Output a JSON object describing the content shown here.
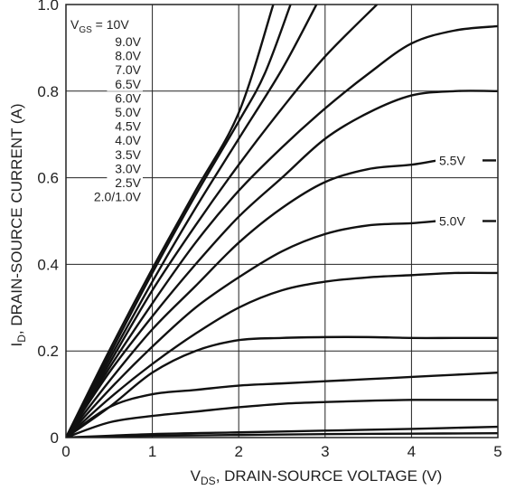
{
  "chart_data": {
    "type": "line",
    "xlabel": {
      "main": "V",
      "sub": "DS",
      "rest": ", DRAIN-SOURCE VOLTAGE (V)"
    },
    "ylabel": {
      "main": "I",
      "sub": "D",
      "rest": ", DRAIN-SOURCE CURRENT (A)"
    },
    "xlim": [
      0,
      5
    ],
    "ylim": [
      0,
      1.0
    ],
    "xticks": [
      "0",
      "1",
      "2",
      "3",
      "4",
      "5"
    ],
    "yticks": [
      "0",
      "0.2",
      "0.4",
      "0.6",
      "0.8",
      "1.0"
    ],
    "grid": true,
    "legend": {
      "header": {
        "main": "V",
        "sub": "GS",
        "rest": " = 10V"
      },
      "entries": [
        "9.0V",
        "8.0V",
        "7.0V",
        "6.5V",
        "6.0V",
        "5.0V",
        "4.5V",
        "4.0V",
        "3.5V",
        "3.0V",
        "2.5V",
        "2.0/1.0V"
      ]
    },
    "annotations": [
      "5.5V",
      "5.0V"
    ],
    "series": [
      {
        "values": [
          [
            0,
            0
          ],
          [
            0.5,
            0.2
          ],
          [
            1,
            0.39
          ],
          [
            1.5,
            0.57
          ],
          [
            2,
            0.75
          ],
          [
            2.4,
            1.0
          ]
        ]
      },
      {
        "values": [
          [
            0,
            0
          ],
          [
            0.5,
            0.19
          ],
          [
            1,
            0.38
          ],
          [
            1.5,
            0.56
          ],
          [
            2,
            0.73
          ],
          [
            2.3,
            0.84
          ],
          [
            2.6,
            1.0
          ]
        ]
      },
      {
        "values": [
          [
            0,
            0
          ],
          [
            0.5,
            0.18
          ],
          [
            1,
            0.36
          ],
          [
            1.5,
            0.53
          ],
          [
            2,
            0.69
          ],
          [
            2.5,
            0.85
          ],
          [
            2.9,
            1.0
          ]
        ]
      },
      {
        "values": [
          [
            0,
            0
          ],
          [
            0.5,
            0.17
          ],
          [
            1,
            0.34
          ],
          [
            1.5,
            0.49
          ],
          [
            2,
            0.63
          ],
          [
            2.5,
            0.76
          ],
          [
            3,
            0.88
          ],
          [
            3.6,
            1.0
          ]
        ]
      },
      {
        "values": [
          [
            0,
            0
          ],
          [
            0.5,
            0.16
          ],
          [
            1,
            0.31
          ],
          [
            1.5,
            0.45
          ],
          [
            2,
            0.57
          ],
          [
            2.5,
            0.67
          ],
          [
            3,
            0.76
          ],
          [
            3.5,
            0.84
          ],
          [
            4,
            0.91
          ],
          [
            4.5,
            0.94
          ],
          [
            5,
            0.95
          ]
        ]
      },
      {
        "values": [
          [
            0,
            0
          ],
          [
            0.5,
            0.15
          ],
          [
            1,
            0.28
          ],
          [
            1.5,
            0.4
          ],
          [
            2,
            0.51
          ],
          [
            2.5,
            0.6
          ],
          [
            3,
            0.69
          ],
          [
            3.5,
            0.75
          ],
          [
            4,
            0.79
          ],
          [
            4.5,
            0.8
          ],
          [
            5,
            0.8
          ]
        ]
      },
      {
        "values": [
          [
            0,
            0
          ],
          [
            0.5,
            0.13
          ],
          [
            1,
            0.25
          ],
          [
            1.5,
            0.35
          ],
          [
            2,
            0.45
          ],
          [
            2.5,
            0.53
          ],
          [
            3,
            0.59
          ],
          [
            3.5,
            0.62
          ],
          [
            4,
            0.63
          ],
          [
            4.3,
            0.64
          ]
        ]
      },
      {
        "values": [
          [
            0,
            0
          ],
          [
            0.5,
            0.11
          ],
          [
            1,
            0.21
          ],
          [
            1.5,
            0.3
          ],
          [
            2,
            0.37
          ],
          [
            2.5,
            0.43
          ],
          [
            3,
            0.47
          ],
          [
            3.5,
            0.49
          ],
          [
            4,
            0.495
          ],
          [
            4.3,
            0.5
          ]
        ]
      },
      {
        "values": [
          [
            0,
            0
          ],
          [
            0.5,
            0.09
          ],
          [
            1,
            0.17
          ],
          [
            1.5,
            0.24
          ],
          [
            2,
            0.3
          ],
          [
            2.5,
            0.34
          ],
          [
            3,
            0.36
          ],
          [
            3.5,
            0.37
          ],
          [
            4,
            0.375
          ],
          [
            4.5,
            0.38
          ],
          [
            5,
            0.38
          ]
        ]
      },
      {
        "values": [
          [
            0,
            0
          ],
          [
            0.5,
            0.07
          ],
          [
            1,
            0.15
          ],
          [
            1.5,
            0.2
          ],
          [
            2,
            0.225
          ],
          [
            2.5,
            0.23
          ],
          [
            3,
            0.232
          ],
          [
            3.5,
            0.232
          ],
          [
            4,
            0.23
          ],
          [
            4.5,
            0.23
          ],
          [
            5,
            0.23
          ]
        ]
      },
      {
        "values": [
          [
            0,
            0
          ],
          [
            0.5,
            0.07
          ],
          [
            1,
            0.1
          ],
          [
            1.5,
            0.11
          ],
          [
            2,
            0.12
          ],
          [
            2.5,
            0.125
          ],
          [
            3,
            0.13
          ],
          [
            3.5,
            0.135
          ],
          [
            4,
            0.14
          ],
          [
            4.5,
            0.145
          ],
          [
            5,
            0.15
          ]
        ]
      },
      {
        "values": [
          [
            0,
            0
          ],
          [
            0.5,
            0.035
          ],
          [
            1,
            0.05
          ],
          [
            1.5,
            0.06
          ],
          [
            2,
            0.07
          ],
          [
            2.5,
            0.078
          ],
          [
            3,
            0.082
          ],
          [
            3.5,
            0.085
          ],
          [
            4,
            0.087
          ],
          [
            4.5,
            0.087
          ],
          [
            5,
            0.087
          ]
        ]
      },
      {
        "values": [
          [
            0,
            0
          ],
          [
            1,
            0.008
          ],
          [
            2,
            0.012
          ],
          [
            3,
            0.016
          ],
          [
            4,
            0.02
          ],
          [
            5,
            0.025
          ]
        ]
      },
      {
        "values": [
          [
            0,
            0
          ],
          [
            1,
            0.004
          ],
          [
            2,
            0.006
          ],
          [
            3,
            0.008
          ],
          [
            4,
            0.009
          ],
          [
            5,
            0.01
          ]
        ]
      }
    ]
  }
}
